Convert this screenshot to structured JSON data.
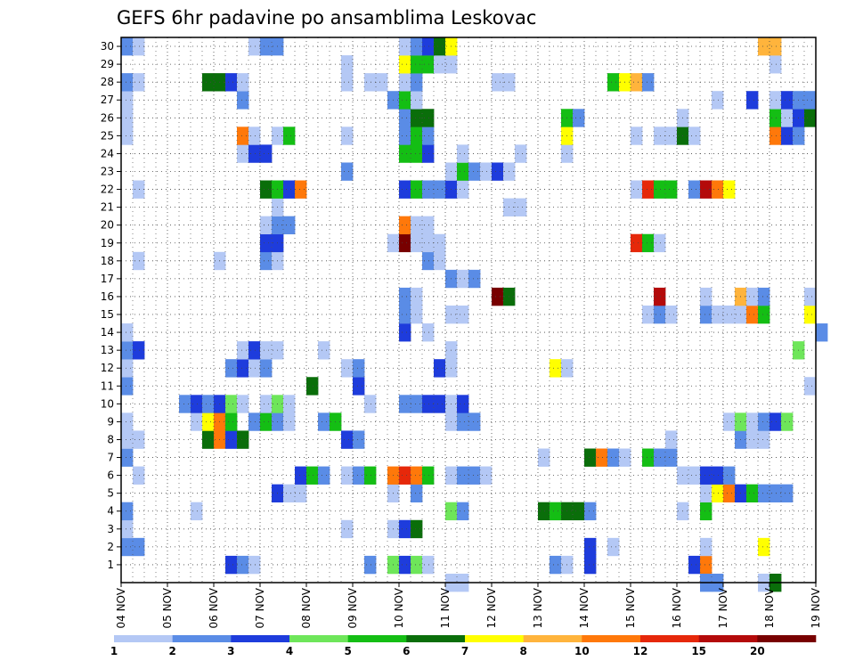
{
  "chart_data": {
    "type": "heatmap",
    "title": "GEFS 6hr padavine po ansamblima Leskovac",
    "xlabel": "",
    "ylabel": "",
    "x_tick_labels": [
      "04 NOV",
      "05 NOV",
      "06 NOV",
      "07 NOV",
      "08 NOV",
      "09 NOV",
      "10 NOV",
      "11 NOV",
      "12 NOV",
      "13 NOV",
      "14 NOV",
      "15 NOV",
      "16 NOV",
      "17 NOV",
      "18 NOV",
      "19 NOV"
    ],
    "x_range_days": [
      0,
      15
    ],
    "y_range_members": [
      0,
      30
    ],
    "y_tick_labels": [
      "1",
      "2",
      "3",
      "4",
      "5",
      "6",
      "7",
      "8",
      "9",
      "10",
      "11",
      "12",
      "13",
      "14",
      "15",
      "16",
      "17",
      "18",
      "19",
      "20",
      "21",
      "22",
      "23",
      "24",
      "25",
      "26",
      "27",
      "28",
      "29",
      "30"
    ],
    "grid": true,
    "colorbar": {
      "thresholds": [
        1,
        2,
        3,
        4,
        5,
        6,
        7,
        8,
        10,
        12,
        15,
        20
      ],
      "tick_labels": [
        "1",
        "2",
        "3",
        "4",
        "5",
        "6",
        "7",
        "8",
        "10",
        "12",
        "15",
        "20"
      ],
      "colors": [
        "#b4c8f5",
        "#5a8ce6",
        "#1e3cdc",
        "#6ee65a",
        "#14be14",
        "#0a6e0a",
        "#ffff00",
        "#ffb43c",
        "#ff780a",
        "#e6280a",
        "#b40a0a",
        "#780000"
      ]
    },
    "cells_note": "each row: [ensemble member (1-30), start day offset from 04 NOV 00UTC, color level 0-11]; each cell spans 0.25 day",
    "cells": [
      [
        1,
        2.25,
        2
      ],
      [
        1,
        2.5,
        1
      ],
      [
        1,
        2.75,
        0
      ],
      [
        1,
        5.25,
        1
      ],
      [
        1,
        5.75,
        3
      ],
      [
        1,
        6.0,
        2
      ],
      [
        1,
        6.25,
        3
      ],
      [
        1,
        6.5,
        0
      ],
      [
        1,
        9.25,
        1
      ],
      [
        1,
        9.5,
        0
      ],
      [
        1,
        10.0,
        2
      ],
      [
        1,
        12.25,
        2
      ],
      [
        1,
        12.5,
        8
      ],
      [
        2,
        0.0,
        1
      ],
      [
        2,
        0.25,
        1
      ],
      [
        2,
        10.0,
        2
      ],
      [
        2,
        10.5,
        0
      ],
      [
        2,
        12.5,
        0
      ],
      [
        2,
        13.75,
        6
      ],
      [
        3,
        0.0,
        0
      ],
      [
        3,
        4.75,
        0
      ],
      [
        3,
        5.75,
        0
      ],
      [
        3,
        6.0,
        2
      ],
      [
        3,
        6.25,
        5
      ],
      [
        4,
        0.0,
        1
      ],
      [
        4,
        1.5,
        0
      ],
      [
        4,
        7.0,
        3
      ],
      [
        4,
        7.25,
        1
      ],
      [
        4,
        9.0,
        5
      ],
      [
        4,
        9.25,
        4
      ],
      [
        4,
        9.5,
        5
      ],
      [
        4,
        9.75,
        5
      ],
      [
        4,
        10.0,
        1
      ],
      [
        4,
        12.0,
        0
      ],
      [
        4,
        12.5,
        4
      ],
      [
        5,
        3.25,
        2
      ],
      [
        5,
        3.5,
        0
      ],
      [
        5,
        3.75,
        0
      ],
      [
        5,
        5.75,
        0
      ],
      [
        5,
        6.25,
        1
      ],
      [
        5,
        12.5,
        0
      ],
      [
        5,
        12.75,
        6
      ],
      [
        5,
        13.0,
        8
      ],
      [
        5,
        13.25,
        2
      ],
      [
        5,
        13.5,
        4
      ],
      [
        5,
        13.75,
        1
      ],
      [
        5,
        14.0,
        1
      ],
      [
        5,
        14.25,
        1
      ],
      [
        6,
        0.25,
        0
      ],
      [
        6,
        3.75,
        2
      ],
      [
        6,
        4.0,
        4
      ],
      [
        6,
        4.25,
        1
      ],
      [
        6,
        4.75,
        0
      ],
      [
        6,
        5.0,
        1
      ],
      [
        6,
        5.25,
        4
      ],
      [
        6,
        5.75,
        8
      ],
      [
        6,
        6.0,
        9
      ],
      [
        6,
        6.25,
        8
      ],
      [
        6,
        6.5,
        4
      ],
      [
        6,
        7.0,
        0
      ],
      [
        6,
        7.25,
        1
      ],
      [
        6,
        7.5,
        1
      ],
      [
        6,
        7.75,
        0
      ],
      [
        6,
        12.0,
        0
      ],
      [
        6,
        12.25,
        0
      ],
      [
        6,
        12.5,
        2
      ],
      [
        6,
        12.75,
        2
      ],
      [
        6,
        13.0,
        1
      ],
      [
        7,
        0.0,
        1
      ],
      [
        7,
        9.0,
        0
      ],
      [
        7,
        10.0,
        5
      ],
      [
        7,
        10.25,
        8
      ],
      [
        7,
        10.5,
        1
      ],
      [
        7,
        10.75,
        0
      ],
      [
        7,
        11.25,
        4
      ],
      [
        7,
        11.5,
        1
      ],
      [
        7,
        11.75,
        1
      ],
      [
        8,
        0.0,
        0
      ],
      [
        8,
        0.25,
        0
      ],
      [
        8,
        1.75,
        5
      ],
      [
        8,
        2.0,
        8
      ],
      [
        8,
        2.25,
        2
      ],
      [
        8,
        2.5,
        5
      ],
      [
        8,
        4.75,
        2
      ],
      [
        8,
        5.0,
        1
      ],
      [
        8,
        11.75,
        0
      ],
      [
        8,
        13.25,
        1
      ],
      [
        8,
        13.5,
        0
      ],
      [
        8,
        13.75,
        0
      ],
      [
        9,
        0.0,
        0
      ],
      [
        9,
        1.5,
        0
      ],
      [
        9,
        1.75,
        6
      ],
      [
        9,
        2.0,
        8
      ],
      [
        9,
        2.25,
        4
      ],
      [
        9,
        2.75,
        1
      ],
      [
        9,
        3.0,
        4
      ],
      [
        9,
        3.25,
        1
      ],
      [
        9,
        3.5,
        0
      ],
      [
        9,
        4.25,
        1
      ],
      [
        9,
        4.5,
        4
      ],
      [
        9,
        7.0,
        0
      ],
      [
        9,
        7.25,
        1
      ],
      [
        9,
        7.5,
        1
      ],
      [
        9,
        13.0,
        0
      ],
      [
        9,
        13.25,
        3
      ],
      [
        9,
        13.5,
        0
      ],
      [
        9,
        13.75,
        1
      ],
      [
        9,
        14.0,
        2
      ],
      [
        9,
        14.25,
        3
      ],
      [
        10,
        1.25,
        1
      ],
      [
        10,
        1.5,
        2
      ],
      [
        10,
        1.75,
        1
      ],
      [
        10,
        2.0,
        2
      ],
      [
        10,
        2.25,
        3
      ],
      [
        10,
        2.5,
        0
      ],
      [
        10,
        3.0,
        0
      ],
      [
        10,
        3.25,
        3
      ],
      [
        10,
        3.5,
        0
      ],
      [
        10,
        5.25,
        0
      ],
      [
        10,
        6.0,
        1
      ],
      [
        10,
        6.25,
        1
      ],
      [
        10,
        6.5,
        2
      ],
      [
        10,
        6.75,
        2
      ],
      [
        10,
        7.0,
        0
      ],
      [
        10,
        7.25,
        2
      ],
      [
        11,
        0.0,
        1
      ],
      [
        11,
        4.0,
        5
      ],
      [
        11,
        5.0,
        2
      ],
      [
        11,
        14.75,
        0
      ],
      [
        12,
        0.0,
        0
      ],
      [
        12,
        2.25,
        1
      ],
      [
        12,
        2.5,
        2
      ],
      [
        12,
        2.75,
        0
      ],
      [
        12,
        3.0,
        1
      ],
      [
        12,
        4.75,
        0
      ],
      [
        12,
        5.0,
        1
      ],
      [
        12,
        6.75,
        2
      ],
      [
        12,
        7.0,
        0
      ],
      [
        12,
        9.25,
        6
      ],
      [
        12,
        9.5,
        0
      ],
      [
        13,
        0.0,
        1
      ],
      [
        13,
        0.25,
        2
      ],
      [
        13,
        2.5,
        0
      ],
      [
        13,
        2.75,
        2
      ],
      [
        13,
        3.0,
        0
      ],
      [
        13,
        3.25,
        0
      ],
      [
        13,
        4.25,
        0
      ],
      [
        13,
        7.0,
        0
      ],
      [
        13,
        14.5,
        3
      ],
      [
        14,
        0.0,
        0
      ],
      [
        14,
        6.0,
        2
      ],
      [
        14,
        6.5,
        0
      ],
      [
        14,
        15.0,
        1
      ],
      [
        15,
        6.0,
        1
      ],
      [
        15,
        6.25,
        0
      ],
      [
        15,
        7.0,
        0
      ],
      [
        15,
        7.25,
        0
      ],
      [
        15,
        11.25,
        0
      ],
      [
        15,
        11.5,
        1
      ],
      [
        15,
        11.75,
        0
      ],
      [
        15,
        12.5,
        1
      ],
      [
        15,
        12.75,
        0
      ],
      [
        15,
        13.0,
        0
      ],
      [
        15,
        13.25,
        0
      ],
      [
        15,
        13.5,
        8
      ],
      [
        15,
        13.75,
        4
      ],
      [
        15,
        14.75,
        6
      ],
      [
        16,
        6.0,
        1
      ],
      [
        16,
        6.25,
        0
      ],
      [
        16,
        8.0,
        11
      ],
      [
        16,
        8.25,
        5
      ],
      [
        16,
        11.5,
        10
      ],
      [
        16,
        12.5,
        0
      ],
      [
        16,
        13.25,
        7
      ],
      [
        16,
        13.5,
        0
      ],
      [
        16,
        13.75,
        1
      ],
      [
        16,
        14.75,
        0
      ],
      [
        17,
        7.0,
        1
      ],
      [
        17,
        7.25,
        0
      ],
      [
        17,
        7.5,
        1
      ],
      [
        18,
        0.25,
        0
      ],
      [
        18,
        2.0,
        0
      ],
      [
        18,
        3.0,
        1
      ],
      [
        18,
        3.25,
        0
      ],
      [
        18,
        6.5,
        1
      ],
      [
        18,
        6.75,
        0
      ],
      [
        19,
        3.0,
        2
      ],
      [
        19,
        3.25,
        2
      ],
      [
        19,
        5.75,
        0
      ],
      [
        19,
        6.0,
        11
      ],
      [
        19,
        6.25,
        0
      ],
      [
        19,
        6.5,
        0
      ],
      [
        19,
        6.75,
        0
      ],
      [
        19,
        11.0,
        9
      ],
      [
        19,
        11.25,
        4
      ],
      [
        19,
        11.5,
        0
      ],
      [
        20,
        3.0,
        0
      ],
      [
        20,
        3.25,
        1
      ],
      [
        20,
        3.5,
        1
      ],
      [
        20,
        6.0,
        8
      ],
      [
        20,
        6.25,
        0
      ],
      [
        20,
        6.5,
        0
      ],
      [
        21,
        3.25,
        0
      ],
      [
        21,
        8.25,
        0
      ],
      [
        21,
        8.5,
        0
      ],
      [
        22,
        0.25,
        0
      ],
      [
        22,
        3.0,
        5
      ],
      [
        22,
        3.25,
        4
      ],
      [
        22,
        3.5,
        2
      ],
      [
        22,
        3.75,
        8
      ],
      [
        22,
        6.0,
        2
      ],
      [
        22,
        6.25,
        4
      ],
      [
        22,
        6.5,
        1
      ],
      [
        22,
        6.75,
        1
      ],
      [
        22,
        7.0,
        2
      ],
      [
        22,
        7.25,
        0
      ],
      [
        22,
        11.0,
        0
      ],
      [
        22,
        11.25,
        9
      ],
      [
        22,
        11.5,
        4
      ],
      [
        22,
        11.75,
        4
      ],
      [
        22,
        12.25,
        1
      ],
      [
        22,
        12.5,
        10
      ],
      [
        22,
        12.75,
        8
      ],
      [
        22,
        13.0,
        6
      ],
      [
        23,
        4.75,
        1
      ],
      [
        23,
        7.0,
        0
      ],
      [
        23,
        7.25,
        4
      ],
      [
        23,
        7.5,
        1
      ],
      [
        23,
        7.75,
        0
      ],
      [
        23,
        8.0,
        2
      ],
      [
        23,
        8.25,
        0
      ],
      [
        24,
        2.5,
        0
      ],
      [
        24,
        2.75,
        2
      ],
      [
        24,
        3.0,
        2
      ],
      [
        24,
        6.0,
        4
      ],
      [
        24,
        6.25,
        4
      ],
      [
        24,
        6.5,
        2
      ],
      [
        24,
        7.25,
        0
      ],
      [
        24,
        8.5,
        0
      ],
      [
        24,
        9.5,
        0
      ],
      [
        25,
        0.0,
        0
      ],
      [
        25,
        2.5,
        8
      ],
      [
        25,
        2.75,
        0
      ],
      [
        25,
        3.25,
        0
      ],
      [
        25,
        3.5,
        4
      ],
      [
        25,
        4.75,
        0
      ],
      [
        25,
        6.0,
        1
      ],
      [
        25,
        6.25,
        4
      ],
      [
        25,
        6.5,
        1
      ],
      [
        25,
        9.5,
        6
      ],
      [
        25,
        11.0,
        0
      ],
      [
        25,
        11.5,
        0
      ],
      [
        25,
        11.75,
        0
      ],
      [
        25,
        12.0,
        5
      ],
      [
        25,
        12.25,
        0
      ],
      [
        25,
        14.0,
        8
      ],
      [
        25,
        14.25,
        2
      ],
      [
        25,
        14.5,
        1
      ],
      [
        26,
        0.0,
        0
      ],
      [
        26,
        6.0,
        1
      ],
      [
        26,
        6.25,
        5
      ],
      [
        26,
        6.5,
        5
      ],
      [
        26,
        9.5,
        4
      ],
      [
        26,
        9.75,
        1
      ],
      [
        26,
        12.0,
        0
      ],
      [
        26,
        14.0,
        4
      ],
      [
        26,
        14.25,
        0
      ],
      [
        26,
        14.5,
        2
      ],
      [
        26,
        14.75,
        5
      ],
      [
        27,
        0.0,
        0
      ],
      [
        27,
        2.5,
        1
      ],
      [
        27,
        5.75,
        1
      ],
      [
        27,
        6.0,
        4
      ],
      [
        27,
        6.25,
        0
      ],
      [
        27,
        12.75,
        0
      ],
      [
        27,
        13.5,
        2
      ],
      [
        27,
        14.0,
        0
      ],
      [
        27,
        14.25,
        2
      ],
      [
        27,
        14.5,
        1
      ],
      [
        27,
        14.75,
        1
      ],
      [
        28,
        0.0,
        1
      ],
      [
        28,
        0.25,
        0
      ],
      [
        28,
        1.75,
        5
      ],
      [
        28,
        2.0,
        5
      ],
      [
        28,
        2.25,
        2
      ],
      [
        28,
        2.5,
        0
      ],
      [
        28,
        4.75,
        0
      ],
      [
        28,
        5.25,
        0
      ],
      [
        28,
        5.5,
        0
      ],
      [
        28,
        6.0,
        0
      ],
      [
        28,
        6.25,
        1
      ],
      [
        28,
        8.0,
        0
      ],
      [
        28,
        8.25,
        0
      ],
      [
        28,
        10.5,
        4
      ],
      [
        28,
        10.75,
        6
      ],
      [
        28,
        11.0,
        7
      ],
      [
        28,
        11.25,
        1
      ],
      [
        29,
        4.75,
        0
      ],
      [
        29,
        6.0,
        6
      ],
      [
        29,
        6.25,
        4
      ],
      [
        29,
        6.5,
        4
      ],
      [
        29,
        6.75,
        0
      ],
      [
        29,
        7.0,
        0
      ],
      [
        29,
        14.0,
        0
      ],
      [
        30,
        0.0,
        1
      ],
      [
        30,
        0.25,
        0
      ],
      [
        30,
        2.75,
        0
      ],
      [
        30,
        3.0,
        1
      ],
      [
        30,
        3.25,
        1
      ],
      [
        30,
        6.0,
        0
      ],
      [
        30,
        6.25,
        1
      ],
      [
        30,
        6.5,
        2
      ],
      [
        30,
        6.75,
        5
      ],
      [
        30,
        7.0,
        6
      ],
      [
        30,
        13.75,
        7
      ],
      [
        30,
        14.0,
        7
      ],
      [
        0,
        7.0,
        0
      ],
      [
        0,
        7.25,
        0
      ],
      [
        0,
        12.5,
        1
      ],
      [
        0,
        12.75,
        1
      ],
      [
        0,
        13.75,
        0
      ],
      [
        0,
        14.0,
        5
      ]
    ]
  }
}
